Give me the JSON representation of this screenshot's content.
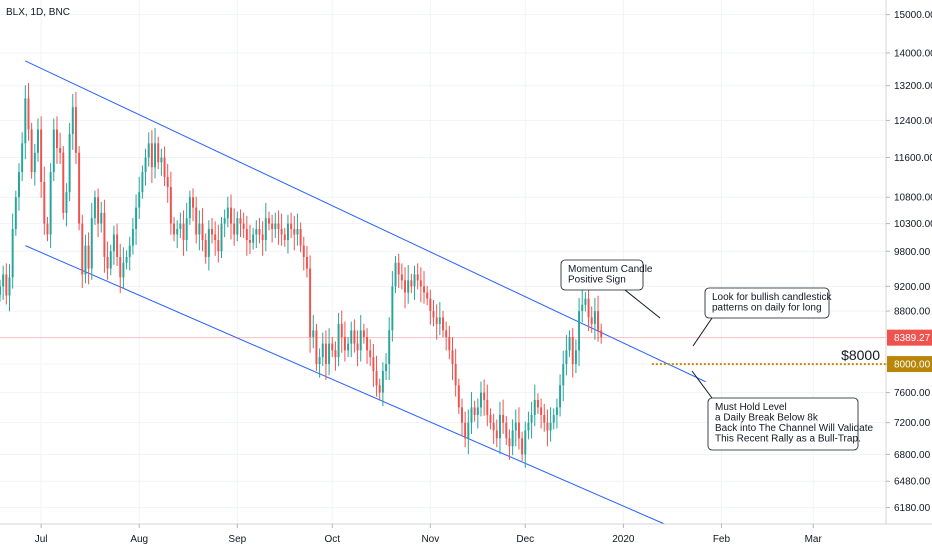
{
  "chart_data": {
    "type": "candlestick",
    "title": "BLX, 1D, BNC",
    "y_scale": "log",
    "ylim": [
      6000,
      15400
    ],
    "y_ticks": [
      "15000.00",
      "14000.00",
      "13200.00",
      "12400.00",
      "11600.00",
      "10800.00",
      "10300.00",
      "9800.00",
      "9200.00",
      "8800.00",
      "8000.00",
      "7600.00",
      "7200.00",
      "6800.00",
      "6480.00",
      "6180.00"
    ],
    "x_ticks": [
      {
        "label": "Jul",
        "date": "2019-07-01"
      },
      {
        "label": "Aug",
        "date": "2019-08-01"
      },
      {
        "label": "Sep",
        "date": "2019-09-01"
      },
      {
        "label": "Oct",
        "date": "2019-10-01"
      },
      {
        "label": "Nov",
        "date": "2019-11-01"
      },
      {
        "label": "Dec",
        "date": "2019-12-01"
      },
      {
        "label": "2020",
        "date": "2020-01-01"
      },
      {
        "label": "Feb",
        "date": "2020-02-01"
      },
      {
        "label": "Mar",
        "date": "2020-03-01"
      }
    ],
    "xlim": [
      "2019-06-18",
      "2020-03-24"
    ],
    "price_label": {
      "value": 8389.27,
      "text": "8389.27",
      "color": "#ef5350"
    },
    "level_label": {
      "value": 8000,
      "text": "8000.00",
      "color": "#b8860b"
    },
    "level_annotation": "$8000",
    "channel_upper": {
      "from": {
        "date": "2019-06-26",
        "value": 13800
      },
      "to": {
        "date": "2020-01-27",
        "value": 7750
      }
    },
    "channel_lower": {
      "from": {
        "date": "2019-06-26",
        "value": 9900
      },
      "to": {
        "date": "2020-01-14",
        "value": 6000
      }
    },
    "callouts": [
      {
        "lines": [
          "Momentum Candle",
          "Positive Sign"
        ]
      },
      {
        "lines": [
          "Look for bullish candlestick",
          "patterns on daily for long"
        ]
      },
      {
        "lines": [
          "Must Hold Level",
          "a Daily Break Below 8k",
          "Back into The Channel Will Validate",
          "This Recent Rally as a Bull-Trap."
        ]
      }
    ],
    "colors": {
      "up": "#26a69a",
      "down": "#ef5350",
      "channel": "#2962ff",
      "level": "#c88a0a"
    },
    "start_date": "2019-06-18",
    "closes": [
      9200,
      9400,
      9050,
      9350,
      10200,
      10800,
      11300,
      11900,
      12900,
      12200,
      11300,
      11700,
      12200,
      11100,
      10300,
      10100,
      11300,
      12200,
      11800,
      11700,
      10500,
      10900,
      12100,
      12700,
      11700,
      10300,
      9400,
      9900,
      9500,
      10400,
      10800,
      10300,
      10500,
      9700,
      9500,
      9800,
      10100,
      9700,
      9350,
      9600,
      9700,
      9900,
      10200,
      10600,
      10900,
      11300,
      11600,
      11900,
      11400,
      11900,
      11500,
      11600,
      11200,
      11000,
      10300,
      10100,
      10200,
      10300,
      10000,
      10400,
      10800,
      10600,
      10100,
      10300,
      10000,
      9700,
      10200,
      10100,
      10000,
      9800,
      10300,
      10400,
      10600,
      10300,
      10100,
      10400,
      10300,
      10200,
      10000,
      9950,
      10100,
      10200,
      10100,
      10000,
      10400,
      10300,
      10200,
      10300,
      10200,
      10100,
      10000,
      10300,
      10200,
      10100,
      10200,
      9900,
      9700,
      9500,
      8400,
      8500,
      8000,
      8100,
      8300,
      8000,
      8300,
      8200,
      8100,
      8600,
      8400,
      8200,
      8300,
      8500,
      8300,
      8200,
      8500,
      8400,
      8200,
      8100,
      7900,
      7700,
      7600,
      7900,
      8000,
      8500,
      9200,
      9600,
      9400,
      9300,
      9100,
      9300,
      9200,
      9400,
      9300,
      9200,
      9100,
      9000,
      8800,
      8700,
      8600,
      8700,
      8500,
      8400,
      8200,
      8000,
      7700,
      7400,
      7200,
      7000,
      7200,
      7400,
      7300,
      7400,
      7600,
      7500,
      7300,
      7200,
      7100,
      7000,
      7300,
      7200,
      7000,
      6900,
      7100,
      7200,
      7000,
      6800,
      7100,
      7200,
      7300,
      7500,
      7400,
      7300,
      7200,
      7100,
      7200,
      7300,
      7400,
      7700,
      8000,
      8200,
      8400,
      8000,
      8200,
      8800,
      8900,
      9000,
      8700,
      8600,
      8800,
      8500,
      8400
    ]
  }
}
